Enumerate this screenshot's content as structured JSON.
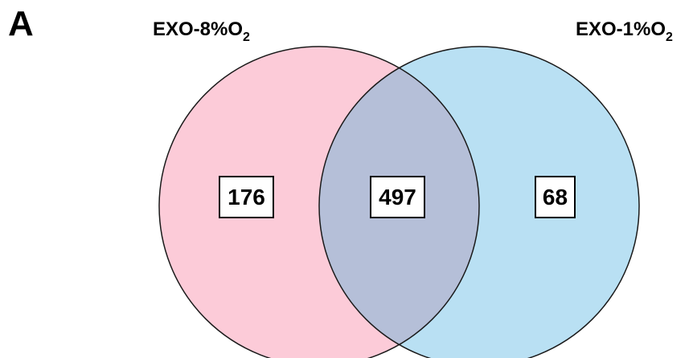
{
  "panel_label": "A",
  "sets": {
    "left": {
      "label_main": "EXO-8%O",
      "label_sub": "2",
      "color": "#fccbd8"
    },
    "right": {
      "label_main": "EXO-1%O",
      "label_sub": "2",
      "color": "#b9e0f3"
    }
  },
  "overlap_color": "#b5bfd8",
  "counts": {
    "left_only": "176",
    "intersection": "497",
    "right_only": "68"
  }
}
